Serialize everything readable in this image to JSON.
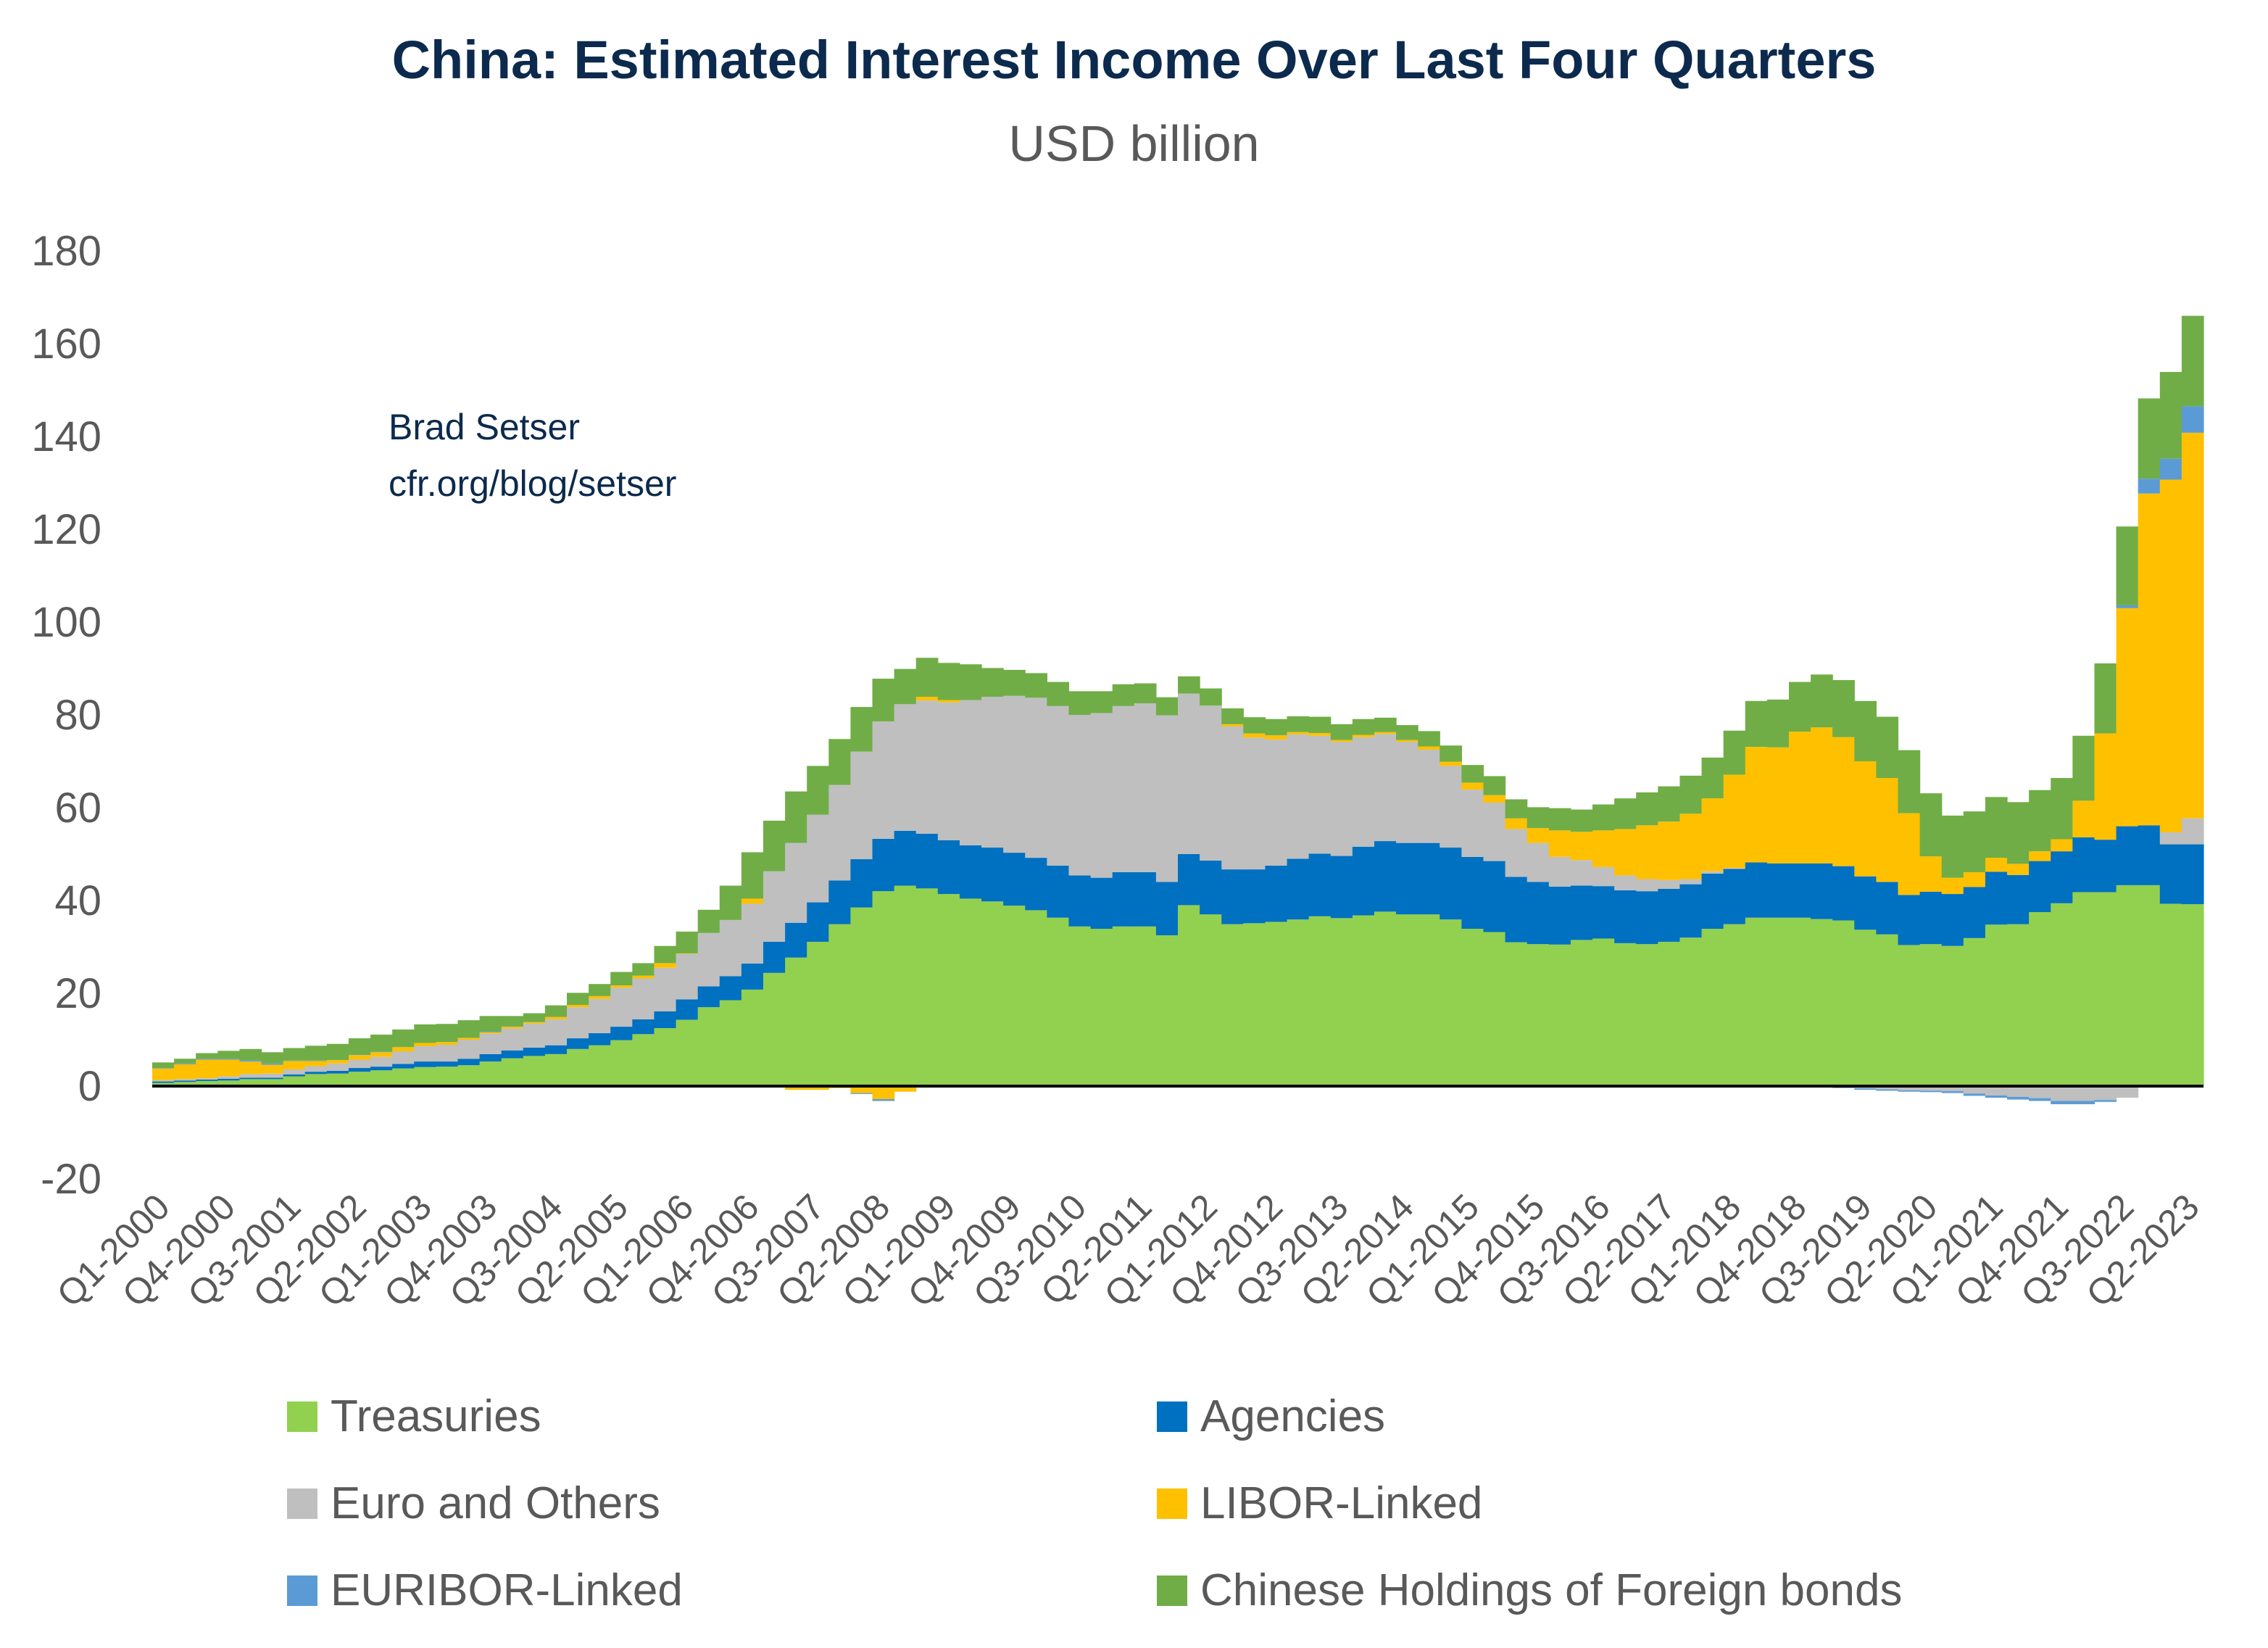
{
  "title": "China: Estimated Interest Income Over Last Four Quarters",
  "subtitle": "USD billion",
  "annotation": {
    "author": "Brad Setser",
    "url": "cfr.org/blog/setser"
  },
  "chart_data": {
    "type": "bar",
    "stacked": true,
    "title": "China: Estimated Interest Income Over Last Four Quarters",
    "subtitle": "USD billion",
    "xlabel": "",
    "ylabel": "",
    "ylim": [
      -20,
      180
    ],
    "y_ticks": [
      180,
      160,
      140,
      120,
      100,
      80,
      60,
      40,
      20,
      0,
      -20
    ],
    "grid": false,
    "legend_position": "bottom",
    "x_tick_labels": [
      "Q1-2000",
      "Q4-2000",
      "Q3-2001",
      "Q2-2002",
      "Q1-2003",
      "Q4-2003",
      "Q3-2004",
      "Q2-2005",
      "Q1-2006",
      "Q4-2006",
      "Q3-2007",
      "Q2-2008",
      "Q1-2009",
      "Q4-2009",
      "Q3-2010",
      "Q2-2011",
      "Q1-2012",
      "Q4-2012",
      "Q3-2013",
      "Q2-2014",
      "Q1-2015",
      "Q4-2015",
      "Q3-2016",
      "Q2-2017",
      "Q1-2018",
      "Q4-2018",
      "Q3-2019",
      "Q2-2020",
      "Q1-2021",
      "Q4-2021",
      "Q3-2022",
      "Q2-2023"
    ],
    "x_start": "Q1-2000",
    "x_end": "Q2-2023",
    "series": [
      {
        "name": "Treasuries",
        "color": "#92d050",
        "values": [
          0.7,
          0.9,
          1.1,
          1.2,
          1.5,
          1.5,
          2.1,
          2.6,
          2.7,
          3.1,
          3.4,
          3.8,
          4.1,
          4.2,
          4.5,
          5.3,
          6.0,
          6.5,
          6.9,
          8.0,
          8.8,
          9.9,
          11.2,
          12.5,
          14.3,
          17.0,
          18.5,
          20.8,
          24.4,
          27.7,
          31.1,
          34.9,
          38.5,
          42.0,
          43.2,
          42.6,
          41.4,
          40.4,
          39.8,
          38.9,
          37.9,
          36.3,
          34.4,
          33.9,
          34.4,
          34.4,
          32.5,
          39.0,
          37.0,
          34.9,
          35.1,
          35.4,
          35.9,
          36.6,
          36.2,
          36.8,
          37.6,
          37.0,
          37.0,
          35.9,
          33.9,
          33.2,
          31.0,
          30.6,
          30.5,
          31.5,
          31.8,
          30.8,
          30.6,
          31.1,
          32.0,
          33.9,
          34.9,
          36.3,
          36.3,
          36.3,
          36.0,
          35.7,
          33.7,
          32.7,
          30.4,
          30.6,
          30.2,
          31.9,
          34.8,
          34.9,
          37.5,
          39.4,
          41.8,
          41.8,
          43.3,
          43.3,
          39.3,
          39.2
        ]
      },
      {
        "name": "Agencies",
        "color": "#0070c0",
        "values": [
          0.3,
          0.3,
          0.3,
          0.4,
          0.3,
          0.3,
          0.4,
          0.5,
          0.6,
          0.8,
          0.8,
          1.0,
          1.2,
          1.1,
          1.4,
          1.6,
          1.7,
          1.8,
          1.9,
          2.3,
          2.6,
          2.9,
          3.2,
          3.6,
          4.4,
          4.5,
          5.2,
          5.6,
          6.7,
          7.5,
          8.5,
          9.4,
          10.4,
          11.3,
          11.8,
          11.8,
          11.6,
          11.5,
          11.6,
          11.4,
          11.3,
          11.2,
          11.0,
          11.0,
          11.7,
          11.7,
          11.5,
          11.0,
          11.6,
          11.8,
          11.6,
          12.1,
          13.1,
          13.5,
          13.4,
          14.8,
          15.2,
          15.4,
          15.4,
          15.5,
          15.5,
          15.3,
          14.1,
          13.4,
          12.5,
          11.7,
          11.3,
          11.4,
          11.4,
          11.4,
          11.5,
          11.9,
          11.9,
          11.9,
          11.7,
          11.7,
          12.0,
          11.7,
          11.5,
          11.3,
          10.8,
          11.3,
          11.2,
          11.0,
          11.4,
          10.6,
          11.0,
          11.2,
          11.8,
          11.3,
          12.7,
          12.9,
          12.8,
          12.9
        ]
      },
      {
        "name": "Euro and Others",
        "color": "#bfbfbf",
        "values": [
          0.3,
          0.3,
          0.3,
          0.5,
          0.8,
          0.9,
          1.1,
          1.2,
          1.6,
          1.8,
          2.1,
          2.7,
          3.3,
          3.6,
          4.1,
          4.4,
          4.7,
          5.2,
          5.6,
          6.7,
          7.4,
          8.4,
          8.8,
          9.4,
          9.8,
          11.5,
          12.1,
          12.9,
          15.2,
          17.2,
          18.9,
          20.6,
          23.2,
          25.3,
          27.3,
          28.7,
          29.7,
          31.3,
          32.5,
          33.8,
          34.5,
          34.4,
          34.6,
          35.5,
          35.8,
          36.4,
          35.9,
          34.6,
          33.4,
          30.8,
          28.4,
          27.2,
          26.8,
          25.4,
          24.6,
          23.6,
          23.1,
          21.8,
          20.1,
          17.6,
          14.5,
          12.6,
          10.3,
          8.4,
          6.4,
          5.5,
          4.1,
          3.2,
          2.6,
          1.9,
          1.1,
          0.5,
          0.2,
          0,
          0,
          0,
          0,
          -0.2,
          -0.5,
          -0.7,
          -0.9,
          -1.0,
          -1.1,
          -1.6,
          -2.0,
          -2.3,
          -2.6,
          -3.2,
          -3.2,
          -3.0,
          -2.5,
          0,
          2.6,
          5.6
        ]
      },
      {
        "name": "LIBOR-Linked",
        "color": "#ffc000",
        "values": [
          2.5,
          3.2,
          4.0,
          3.6,
          2.7,
          1.9,
          1.8,
          1.1,
          0.7,
          1.0,
          1.0,
          0.9,
          0.7,
          0.6,
          0.4,
          0.3,
          0.4,
          0.3,
          0.5,
          0.5,
          0.6,
          0.5,
          0.6,
          1.0,
          0.1,
          0,
          0,
          1.1,
          -0.2,
          -0.8,
          -0.8,
          -0.4,
          -1.5,
          -2.8,
          -1.2,
          0.8,
          0.5,
          0,
          0,
          0,
          0,
          0,
          0,
          0,
          0,
          0,
          0,
          0,
          0,
          0.5,
          0.9,
          0.9,
          0.5,
          0.6,
          0.4,
          0.5,
          0.4,
          0.4,
          0.7,
          0.9,
          1.5,
          1.6,
          2.3,
          3.2,
          5.7,
          6.1,
          7.9,
          10.0,
          11.6,
          12.6,
          14.1,
          15.7,
          20.1,
          24.9,
          25.0,
          28.4,
          29.3,
          27.8,
          24.8,
          22.4,
          17.6,
          7.6,
          3.5,
          3.2,
          3.0,
          2.4,
          2.1,
          2.6,
          7.9,
          22.9,
          47.0,
          71.5,
          76.0,
          83.1
        ]
      },
      {
        "name": "EURIBOR-Linked",
        "color": "#5b9bd5",
        "values": [
          0.1,
          0.2,
          0.2,
          0.2,
          0.3,
          0.3,
          0.1,
          0.1,
          0,
          0.1,
          0.1,
          0,
          0,
          0,
          0,
          0.2,
          0.1,
          0,
          0,
          0,
          0,
          0,
          0,
          0,
          0,
          0,
          -0.1,
          0,
          -0.1,
          0,
          0,
          0,
          -0.2,
          -0.4,
          0,
          0,
          0,
          0,
          0,
          0,
          0,
          0,
          0,
          0,
          0,
          0,
          0,
          0,
          0,
          0,
          0,
          0,
          0,
          0,
          0,
          0,
          0,
          0,
          0,
          0,
          0,
          0,
          0,
          0,
          0,
          0,
          0,
          0,
          0,
          0,
          0,
          0,
          0,
          0,
          0,
          0,
          -0.2,
          -0.2,
          -0.3,
          -0.3,
          -0.3,
          -0.3,
          -0.4,
          -0.5,
          -0.5,
          -0.6,
          -0.6,
          -0.7,
          -0.7,
          -0.4,
          0.6,
          3.2,
          4.5,
          5.7
        ]
      },
      {
        "name": "Chinese Holdings of Foreign bonds",
        "color": "#70ad47",
        "values": [
          1.2,
          1.0,
          1.2,
          1.7,
          2.4,
          2.4,
          2.7,
          3.2,
          3.5,
          3.5,
          3.7,
          3.8,
          4.0,
          3.9,
          3.8,
          3.3,
          2.2,
          1.9,
          2.5,
          2.6,
          2.6,
          2.9,
          2.7,
          3.7,
          4.7,
          5.0,
          7.4,
          10.0,
          10.9,
          11.1,
          10.5,
          9.9,
          9.6,
          9.2,
          7.6,
          8.4,
          8.0,
          7.7,
          6.2,
          5.6,
          5.3,
          5.2,
          5.1,
          4.7,
          4.7,
          4.3,
          3.9,
          3.7,
          3.7,
          3.4,
          3.5,
          3.5,
          3.4,
          3.5,
          3.4,
          3.4,
          3.1,
          3.2,
          3.3,
          3.5,
          3.8,
          4.1,
          4.1,
          4.5,
          4.8,
          4.8,
          5.6,
          6.6,
          7.1,
          7.6,
          8.2,
          8.8,
          9.5,
          9.9,
          10.3,
          10.7,
          11.4,
          12.3,
          13.0,
          13.2,
          13.6,
          13.6,
          13.4,
          13.1,
          13.1,
          13.3,
          13.2,
          13.2,
          14.0,
          15.1,
          17.0,
          17.3,
          18.7,
          19.5
        ]
      }
    ]
  },
  "legend": [
    {
      "label": "Treasuries",
      "color": "#92d050"
    },
    {
      "label": "Agencies",
      "color": "#0070c0"
    },
    {
      "label": "Euro and Others",
      "color": "#bfbfbf"
    },
    {
      "label": "LIBOR-Linked",
      "color": "#ffc000"
    },
    {
      "label": "EURIBOR-Linked",
      "color": "#5b9bd5"
    },
    {
      "label": "Chinese Holdings of Foreign bonds",
      "color": "#70ad47"
    }
  ]
}
